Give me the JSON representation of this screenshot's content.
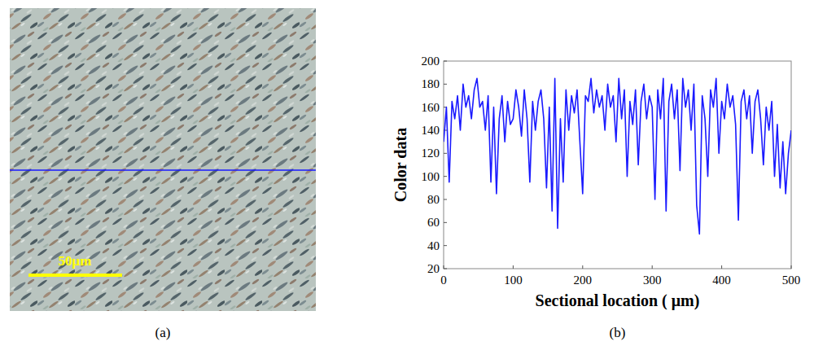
{
  "figure": {
    "panel_a": {
      "label": "(a)",
      "scale_bar": "50μm"
    },
    "panel_b": {
      "label": "(b)"
    }
  },
  "chart_data": {
    "type": "line",
    "xlabel": "Sectional location ( μm)",
    "ylabel": "Color data",
    "color": "#1a1aff",
    "xlim": [
      0,
      500
    ],
    "ylim": [
      20,
      200
    ],
    "xticks": [
      0,
      100,
      200,
      300,
      400,
      500
    ],
    "yticks": [
      20,
      40,
      60,
      80,
      100,
      120,
      140,
      160,
      180,
      200
    ],
    "grid": false,
    "x": [
      0,
      4,
      8,
      12,
      16,
      20,
      24,
      28,
      32,
      36,
      40,
      44,
      48,
      52,
      56,
      60,
      64,
      68,
      72,
      76,
      80,
      84,
      88,
      92,
      96,
      100,
      104,
      108,
      112,
      116,
      120,
      124,
      128,
      132,
      136,
      140,
      144,
      148,
      152,
      156,
      160,
      164,
      168,
      172,
      176,
      180,
      184,
      188,
      192,
      196,
      200,
      204,
      208,
      212,
      216,
      220,
      224,
      228,
      232,
      236,
      240,
      244,
      248,
      252,
      256,
      260,
      264,
      268,
      272,
      276,
      280,
      284,
      288,
      292,
      296,
      300,
      304,
      308,
      312,
      316,
      320,
      324,
      328,
      332,
      336,
      340,
      344,
      348,
      352,
      356,
      360,
      364,
      368,
      372,
      376,
      380,
      384,
      388,
      392,
      396,
      400,
      404,
      408,
      412,
      416,
      420,
      424,
      428,
      432,
      436,
      440,
      444,
      448,
      452,
      456,
      460,
      464,
      468,
      472,
      476,
      480,
      484,
      488,
      492,
      496,
      500
    ],
    "values": [
      130,
      160,
      95,
      165,
      150,
      170,
      140,
      180,
      160,
      170,
      150,
      175,
      185,
      160,
      165,
      140,
      170,
      95,
      160,
      85,
      150,
      170,
      130,
      165,
      145,
      150,
      175,
      160,
      135,
      175,
      150,
      95,
      165,
      140,
      165,
      175,
      150,
      90,
      160,
      70,
      185,
      55,
      150,
      95,
      175,
      140,
      170,
      155,
      175,
      130,
      85,
      170,
      165,
      185,
      155,
      175,
      160,
      170,
      140,
      180,
      160,
      170,
      130,
      185,
      150,
      175,
      100,
      165,
      145,
      175,
      110,
      165,
      180,
      150,
      170,
      160,
      80,
      175,
      150,
      185,
      70,
      165,
      180,
      150,
      175,
      105,
      185,
      160,
      175,
      140,
      180,
      75,
      50,
      170,
      150,
      100,
      175,
      160,
      185,
      120,
      165,
      150,
      180,
      160,
      170,
      145,
      62,
      165,
      175,
      150,
      170,
      120,
      165,
      175,
      150,
      110,
      160,
      140,
      165,
      100,
      145,
      90,
      130,
      85,
      120,
      140
    ]
  }
}
